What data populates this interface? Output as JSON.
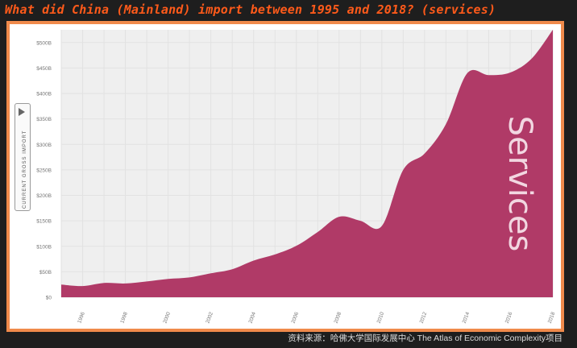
{
  "page": {
    "title": "What did China (Mainland)  import between 1995 and 2018?  (services)",
    "source": "资料来源：哈佛大学国际发展中心 The Atlas of Economic Complexity项目",
    "yaxis_toggle": "CURRENT GROSS IMPORT"
  },
  "colors": {
    "title": "#ff5a1a",
    "frame_border": "#f08a4b",
    "area_fill": "#b03a67",
    "grid": "#e2e2e2",
    "plot_bg": "#efefef"
  },
  "chart_data": {
    "type": "area",
    "series": [
      {
        "name": "Services",
        "x": [
          1995,
          1996,
          1997,
          1998,
          1999,
          2000,
          2001,
          2002,
          2003,
          2004,
          2005,
          2006,
          2007,
          2008,
          2009,
          2010,
          2011,
          2012,
          2013,
          2014,
          2015,
          2016,
          2017,
          2018
        ],
        "values": [
          25,
          22,
          28,
          27,
          31,
          36,
          39,
          47,
          55,
          72,
          84,
          101,
          128,
          158,
          150,
          140,
          250,
          282,
          340,
          440,
          436,
          441,
          468,
          525
        ]
      }
    ],
    "yticks": [
      "$0",
      "$50B",
      "$100B",
      "$150B",
      "$200B",
      "$250B",
      "$300B",
      "$350B",
      "$400B",
      "$450B",
      "$500B"
    ],
    "ytick_values": [
      0,
      50,
      100,
      150,
      200,
      250,
      300,
      350,
      400,
      450,
      500
    ],
    "xticks": [
      1996,
      1998,
      2000,
      2002,
      2004,
      2006,
      2008,
      2010,
      2012,
      2014,
      2016,
      2018
    ],
    "xlim": [
      1995,
      2018
    ],
    "ylim": [
      0,
      525
    ],
    "grid": true,
    "series_label_in_chart": "Services"
  }
}
